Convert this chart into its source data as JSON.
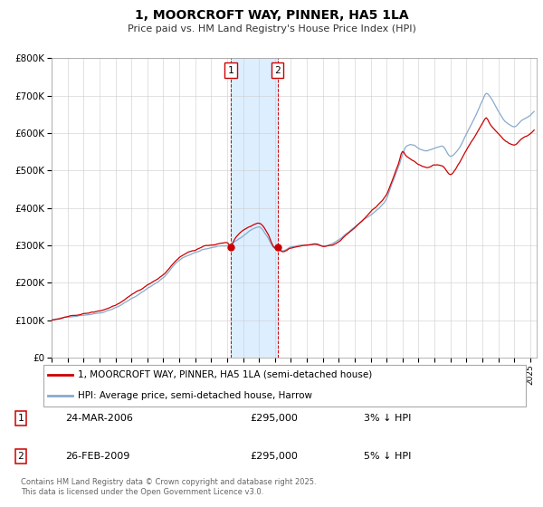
{
  "title": "1, MOORCROFT WAY, PINNER, HA5 1LA",
  "subtitle": "Price paid vs. HM Land Registry's House Price Index (HPI)",
  "legend_label_red": "1, MOORCROFT WAY, PINNER, HA5 1LA (semi-detached house)",
  "legend_label_blue": "HPI: Average price, semi-detached house, Harrow",
  "footer": "Contains HM Land Registry data © Crown copyright and database right 2025.\nThis data is licensed under the Open Government Licence v3.0.",
  "transaction1_date": "24-MAR-2006",
  "transaction1_price": "£295,000",
  "transaction1_hpi": "3% ↓ HPI",
  "transaction2_date": "26-FEB-2009",
  "transaction2_price": "£295,000",
  "transaction2_hpi": "5% ↓ HPI",
  "red_color": "#cc0000",
  "blue_color": "#88aacc",
  "highlight_color": "#ddeeff",
  "ylim": [
    0,
    800000
  ],
  "yticks": [
    0,
    100000,
    200000,
    300000,
    400000,
    500000,
    600000,
    700000,
    800000
  ],
  "ytick_labels": [
    "£0",
    "£100K",
    "£200K",
    "£300K",
    "£400K",
    "£500K",
    "£600K",
    "£700K",
    "£800K"
  ],
  "transaction1_x": 2006.23,
  "transaction2_x": 2009.16,
  "transaction1_y": 295000,
  "transaction2_y": 295000,
  "xlim_start": 1995.0,
  "xlim_end": 2025.4
}
